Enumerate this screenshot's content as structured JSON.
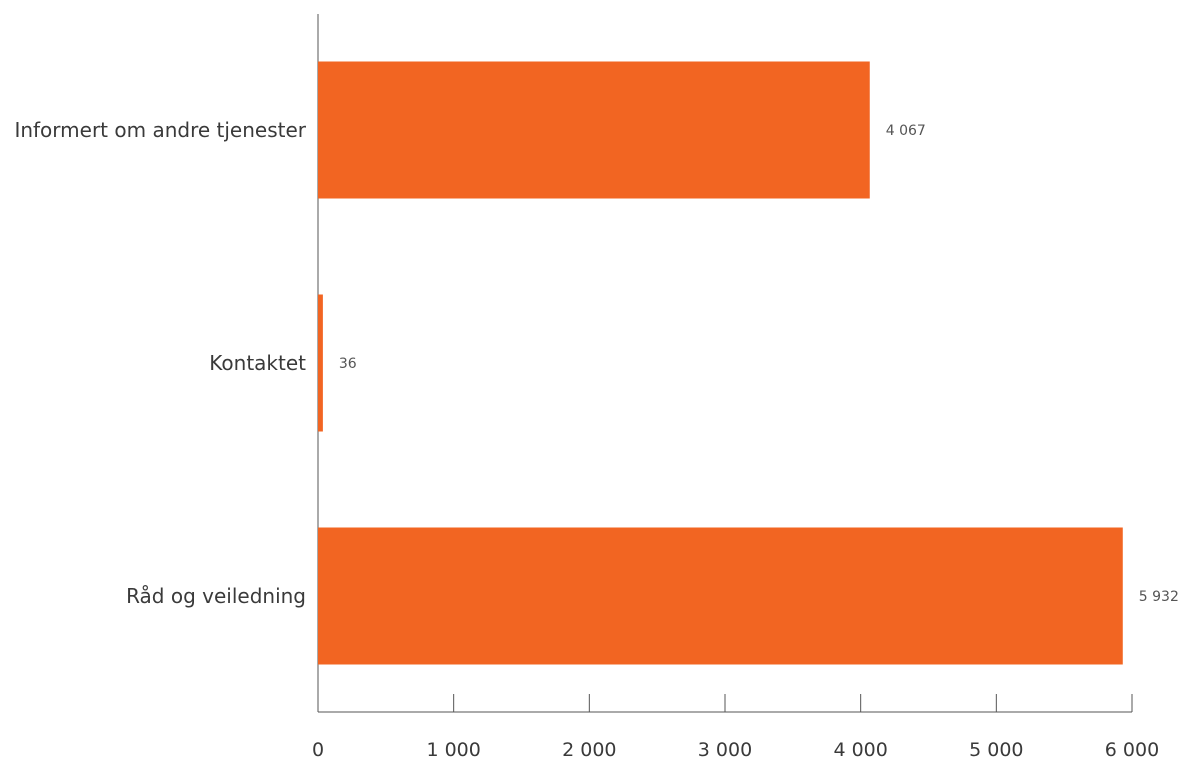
{
  "chart_data": {
    "type": "bar",
    "orientation": "horizontal",
    "title": "",
    "xlabel": "",
    "ylabel": "",
    "categories": [
      "Informert om andre tjenester",
      "Kontaktet",
      "Råd og veiledning"
    ],
    "values": [
      4067,
      36,
      5932
    ],
    "value_labels": [
      "4 067",
      "36",
      "5 932"
    ],
    "xlim": [
      0,
      6000
    ],
    "x_ticks": [
      0,
      1000,
      2000,
      3000,
      4000,
      5000,
      6000
    ],
    "x_tick_labels": [
      "0",
      "1 000",
      "2 000",
      "3 000",
      "4 000",
      "5 000",
      "6 000"
    ],
    "grid": false,
    "legend": "none",
    "bar_color": "#f26522"
  }
}
